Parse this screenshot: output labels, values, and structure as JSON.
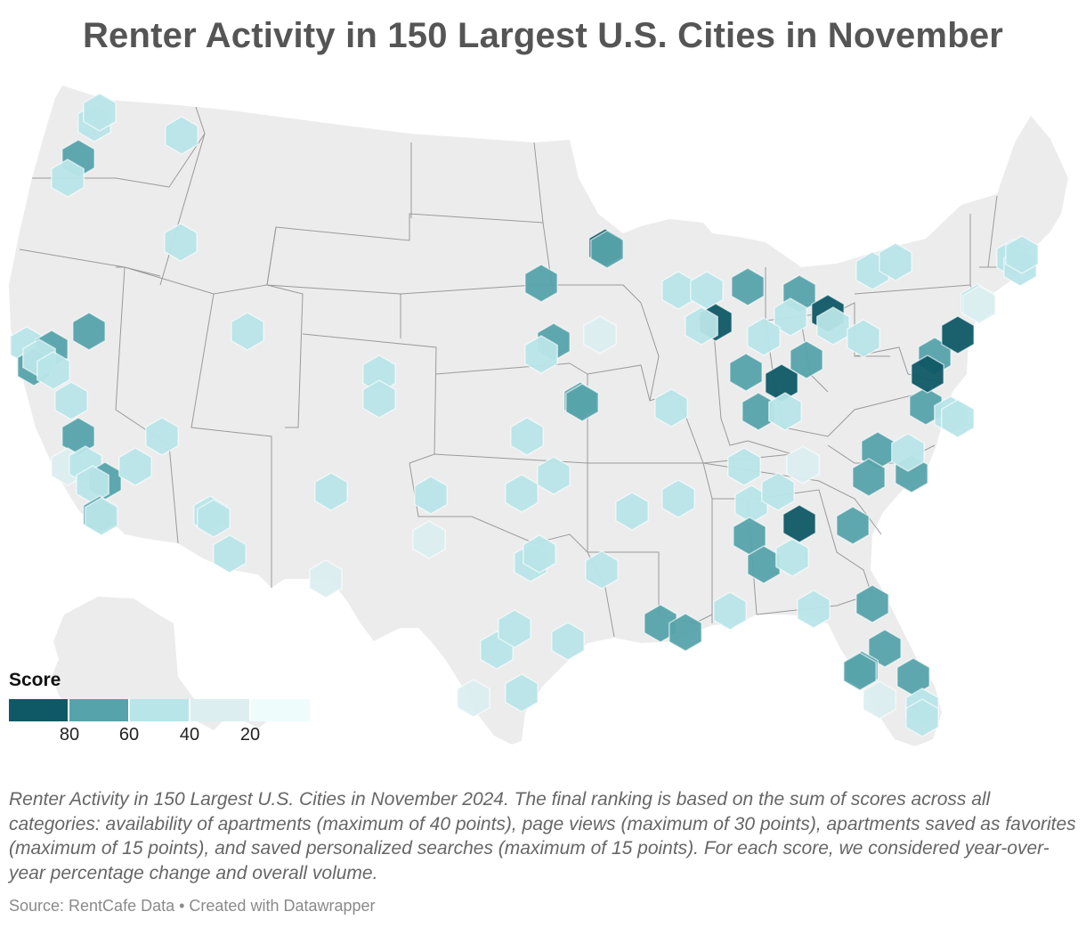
{
  "title": "Renter Activity in 150 Largest U.S. Cities in November",
  "legend": {
    "title": "Score",
    "colors": [
      "#0f5966",
      "#57a3ab",
      "#b8e5e8",
      "#dceef0",
      "#eefcfc"
    ],
    "ticks": [
      "80",
      "60",
      "40",
      "20"
    ]
  },
  "notes": "Renter Activity in 150 Largest U.S. Cities in November 2024. The final ranking is based on the sum of scores across all categories: availability of apartments (maximum of 40 points), page views (maximum of 30 points), apartments saved as favorites (maximum of 15 points), and saved personalized searches (maximum of 15 points). For each score, we considered year-over-year percentage change and overall volume.",
  "source": "Source: RentCafe Data • Created with Datawrapper",
  "map": {
    "land_color": "#ececec",
    "border_color": "#9a9a9a",
    "hex_levels": [
      "#0f5966",
      "#57a3ab",
      "#b8e5e8",
      "#dceef0"
    ]
  }
}
